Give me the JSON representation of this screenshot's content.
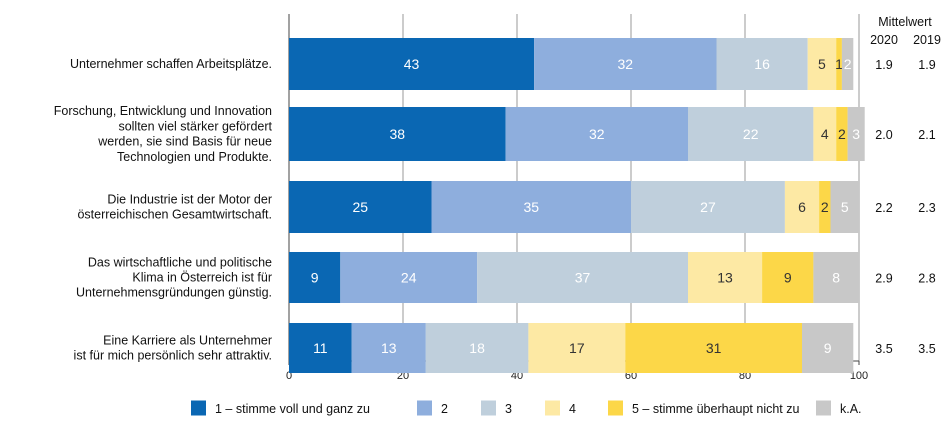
{
  "chart_data": {
    "type": "bar",
    "orientation": "horizontal",
    "stacked": true,
    "title": "",
    "xlabel": "",
    "ylabel": "",
    "xlim": [
      0,
      100
    ],
    "x_ticks": [
      0,
      20,
      40,
      60,
      80,
      100
    ],
    "grid": true,
    "legend_position": "bottom",
    "categories": [
      [
        "Unternehmer schaffen Arbeitsplätze."
      ],
      [
        "Forschung, Entwicklung und Innovation",
        "sollten viel stärker gefördert",
        "werden, sie sind Basis für neue",
        "Technologien und Produkte."
      ],
      [
        "Die Industrie ist der Motor der",
        "österreichischen Gesamtwirtschaft."
      ],
      [
        "Das wirtschaftliche und politische",
        "Klima in Österreich ist für",
        "Unternehmensgründungen günstig."
      ],
      [
        "Eine Karriere als Unternehmer",
        "ist für mich persönlich sehr attraktiv."
      ]
    ],
    "series": [
      {
        "name": "1 – stimme voll und ganz zu",
        "color": "#0a67b3",
        "label_color": "#ffffff",
        "values": [
          43,
          38,
          25,
          9,
          11
        ]
      },
      {
        "name": "2",
        "color": "#8eaedd",
        "label_color": "#ffffff",
        "values": [
          32,
          32,
          35,
          24,
          13
        ]
      },
      {
        "name": "3",
        "color": "#bfcfdc",
        "label_color": "#ffffff",
        "values": [
          16,
          22,
          27,
          37,
          18
        ]
      },
      {
        "name": "4",
        "color": "#fde9a4",
        "label_color": "#333333",
        "values": [
          5,
          4,
          6,
          13,
          17
        ]
      },
      {
        "name": "5 – stimme überhaupt nicht zu",
        "color": "#fcd748",
        "label_color": "#333333",
        "values": [
          1,
          2,
          2,
          9,
          31
        ]
      },
      {
        "name": "k.A.",
        "color": "#c8c8c8",
        "label_color": "#ffffff",
        "values": [
          2,
          3,
          5,
          8,
          9
        ]
      }
    ],
    "mittelwert": {
      "header": "Mittelwert",
      "years": [
        "2020",
        "2019"
      ],
      "values": [
        [
          "1.9",
          "1.9"
        ],
        [
          "2.0",
          "2.1"
        ],
        [
          "2.2",
          "2.3"
        ],
        [
          "2.9",
          "2.8"
        ],
        [
          "3.5",
          "3.5"
        ]
      ]
    }
  }
}
